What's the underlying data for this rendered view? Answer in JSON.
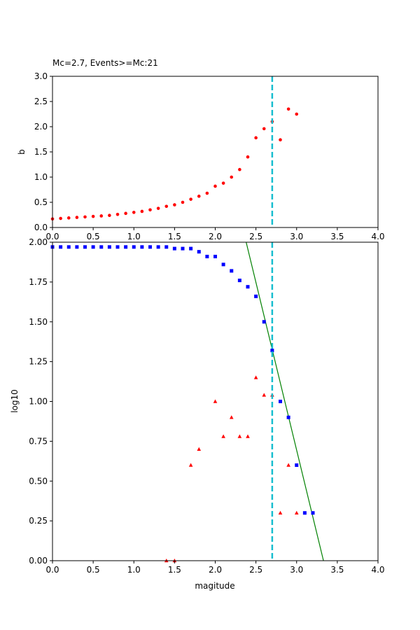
{
  "chart_data": [
    {
      "type": "scatter",
      "title": "Mc=2.7, Events>=Mc:21",
      "xlabel": "",
      "ylabel": "b",
      "xlim": [
        0.0,
        4.0
      ],
      "ylim": [
        0.0,
        3.0
      ],
      "xticks": [
        "0.0",
        "0.5",
        "1.0",
        "1.5",
        "2.0",
        "2.5",
        "3.0",
        "3.5",
        "4.0"
      ],
      "yticks": [
        "0.0",
        "0.5",
        "1.0",
        "1.5",
        "2.0",
        "2.5",
        "3.0"
      ],
      "grid": false,
      "series": [
        {
          "marker": "circle",
          "color": "#ff0000",
          "points": [
            [
              0.0,
              0.17
            ],
            [
              0.1,
              0.18
            ],
            [
              0.2,
              0.19
            ],
            [
              0.3,
              0.2
            ],
            [
              0.4,
              0.21
            ],
            [
              0.5,
              0.22
            ],
            [
              0.6,
              0.23
            ],
            [
              0.7,
              0.24
            ],
            [
              0.8,
              0.26
            ],
            [
              0.9,
              0.28
            ],
            [
              1.0,
              0.3
            ],
            [
              1.1,
              0.32
            ],
            [
              1.2,
              0.35
            ],
            [
              1.3,
              0.38
            ],
            [
              1.4,
              0.42
            ],
            [
              1.5,
              0.45
            ],
            [
              1.6,
              0.5
            ],
            [
              1.7,
              0.56
            ],
            [
              1.8,
              0.62
            ],
            [
              1.9,
              0.68
            ],
            [
              2.0,
              0.82
            ],
            [
              2.1,
              0.88
            ],
            [
              2.2,
              1.0
            ],
            [
              2.3,
              1.15
            ],
            [
              2.4,
              1.4
            ],
            [
              2.5,
              1.78
            ],
            [
              2.6,
              1.96
            ],
            [
              2.7,
              2.1
            ],
            [
              2.8,
              1.74
            ],
            [
              2.9,
              2.35
            ],
            [
              3.0,
              2.25
            ]
          ]
        }
      ],
      "vline": {
        "x": 2.7,
        "color": "#17becf",
        "style": "dashed"
      }
    },
    {
      "type": "scatter",
      "title": "",
      "xlabel": "magitude",
      "ylabel": "log10",
      "xlim": [
        0.0,
        4.0
      ],
      "ylim": [
        0.0,
        2.0
      ],
      "xticks": [
        "0.0",
        "0.5",
        "1.0",
        "1.5",
        "2.0",
        "2.5",
        "3.0",
        "3.5",
        "4.0"
      ],
      "yticks": [
        "0.00",
        "0.25",
        "0.50",
        "0.75",
        "1.00",
        "1.25",
        "1.50",
        "1.75",
        "2.00"
      ],
      "grid": false,
      "series": [
        {
          "marker": "square",
          "color": "#0000ff",
          "points": [
            [
              0.0,
              1.97
            ],
            [
              0.1,
              1.97
            ],
            [
              0.2,
              1.97
            ],
            [
              0.3,
              1.97
            ],
            [
              0.4,
              1.97
            ],
            [
              0.5,
              1.97
            ],
            [
              0.6,
              1.97
            ],
            [
              0.7,
              1.97
            ],
            [
              0.8,
              1.97
            ],
            [
              0.9,
              1.97
            ],
            [
              1.0,
              1.97
            ],
            [
              1.1,
              1.97
            ],
            [
              1.2,
              1.97
            ],
            [
              1.3,
              1.97
            ],
            [
              1.4,
              1.97
            ],
            [
              1.5,
              1.96
            ],
            [
              1.6,
              1.96
            ],
            [
              1.7,
              1.96
            ],
            [
              1.8,
              1.94
            ],
            [
              1.9,
              1.91
            ],
            [
              2.0,
              1.91
            ],
            [
              2.1,
              1.86
            ],
            [
              2.2,
              1.82
            ],
            [
              2.3,
              1.76
            ],
            [
              2.4,
              1.72
            ],
            [
              2.5,
              1.66
            ],
            [
              2.6,
              1.5
            ],
            [
              2.7,
              1.32
            ],
            [
              2.8,
              1.0
            ],
            [
              2.9,
              0.9
            ],
            [
              3.0,
              0.6
            ],
            [
              3.1,
              0.3
            ],
            [
              3.2,
              0.3
            ]
          ]
        },
        {
          "marker": "triangle",
          "color": "#ff0000",
          "points": [
            [
              1.4,
              0.0
            ],
            [
              1.5,
              0.0
            ],
            [
              1.7,
              0.6
            ],
            [
              1.8,
              0.7
            ],
            [
              2.0,
              1.0
            ],
            [
              2.1,
              0.78
            ],
            [
              2.2,
              0.9
            ],
            [
              2.3,
              0.78
            ],
            [
              2.4,
              0.78
            ],
            [
              2.5,
              1.15
            ],
            [
              2.6,
              1.04
            ],
            [
              2.7,
              1.04
            ],
            [
              2.8,
              0.3
            ],
            [
              2.9,
              0.6
            ],
            [
              3.0,
              0.3
            ]
          ]
        }
      ],
      "fit_line": {
        "color": "#008000",
        "points": [
          [
            2.38,
            2.0
          ],
          [
            3.33,
            0.0
          ]
        ]
      },
      "vline": {
        "x": 2.7,
        "color": "#17becf",
        "style": "dashed"
      }
    }
  ]
}
